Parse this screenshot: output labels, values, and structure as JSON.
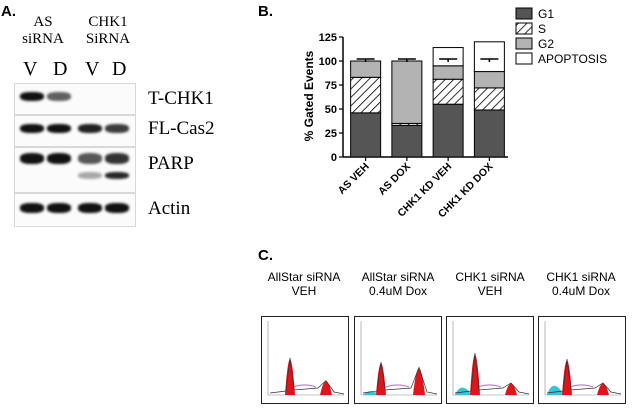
{
  "panelA": {
    "letter": "A.",
    "group1_line1": "AS",
    "group1_line2": "siRNA",
    "group2_line1": "CHK1",
    "group2_line2": "SiRNA",
    "lanes": [
      "V",
      "D",
      "V",
      "D"
    ],
    "blots": [
      {
        "label": "T-CHK1",
        "intensity": [
          1.0,
          0.55,
          0.0,
          0.0
        ]
      },
      {
        "label": "FL-Cas2",
        "intensity": [
          1.0,
          1.0,
          0.9,
          0.75
        ]
      },
      {
        "label": "PARP",
        "intensity": [
          1.0,
          1.0,
          0.6,
          0.8
        ]
      },
      {
        "label": "Actin",
        "intensity": [
          1.0,
          1.0,
          1.0,
          1.0
        ]
      }
    ]
  },
  "panelB": {
    "letter": "B.",
    "legend": [
      "G1",
      "S",
      "G2",
      "APOPTOSIS"
    ]
  },
  "chart_data": {
    "type": "bar",
    "stacked": true,
    "ylabel": "% Gated Events",
    "xlabel": "",
    "ylim": [
      0,
      125
    ],
    "yticks": [
      0,
      25,
      50,
      75,
      100,
      125
    ],
    "categories": [
      "AS VEH",
      "AS DOX",
      "CHK1 KD VEH",
      "CHK1 KD DOX"
    ],
    "series": [
      {
        "name": "G1",
        "values": [
          46,
          33,
          55,
          49
        ],
        "color": "#555555"
      },
      {
        "name": "S",
        "values": [
          37,
          2,
          26,
          23
        ],
        "color": "hatch"
      },
      {
        "name": "G2",
        "values": [
          17,
          65,
          14,
          17
        ],
        "color": "#b3b3b3"
      },
      {
        "name": "APOPTOSIS",
        "values": [
          0,
          0,
          19,
          31
        ],
        "color": "#ffffff"
      }
    ],
    "error_at": [
      100,
      100,
      100,
      100
    ]
  },
  "panelC": {
    "letter": "C.",
    "items": [
      {
        "title1": "AllStar siRNA",
        "title2": "VEH"
      },
      {
        "title1": "AllStar siRNA",
        "title2": "0.4uM Dox"
      },
      {
        "title1": "CHK1 siRNA",
        "title2": "VEH"
      },
      {
        "title1": "CHK1 siRNA",
        "title2": "0.4uM Dox"
      }
    ]
  },
  "colors": {
    "g1": "#555555",
    "g2": "#b3b3b3",
    "peak": "#e0141b",
    "apoptosis": "#35c4d9"
  }
}
